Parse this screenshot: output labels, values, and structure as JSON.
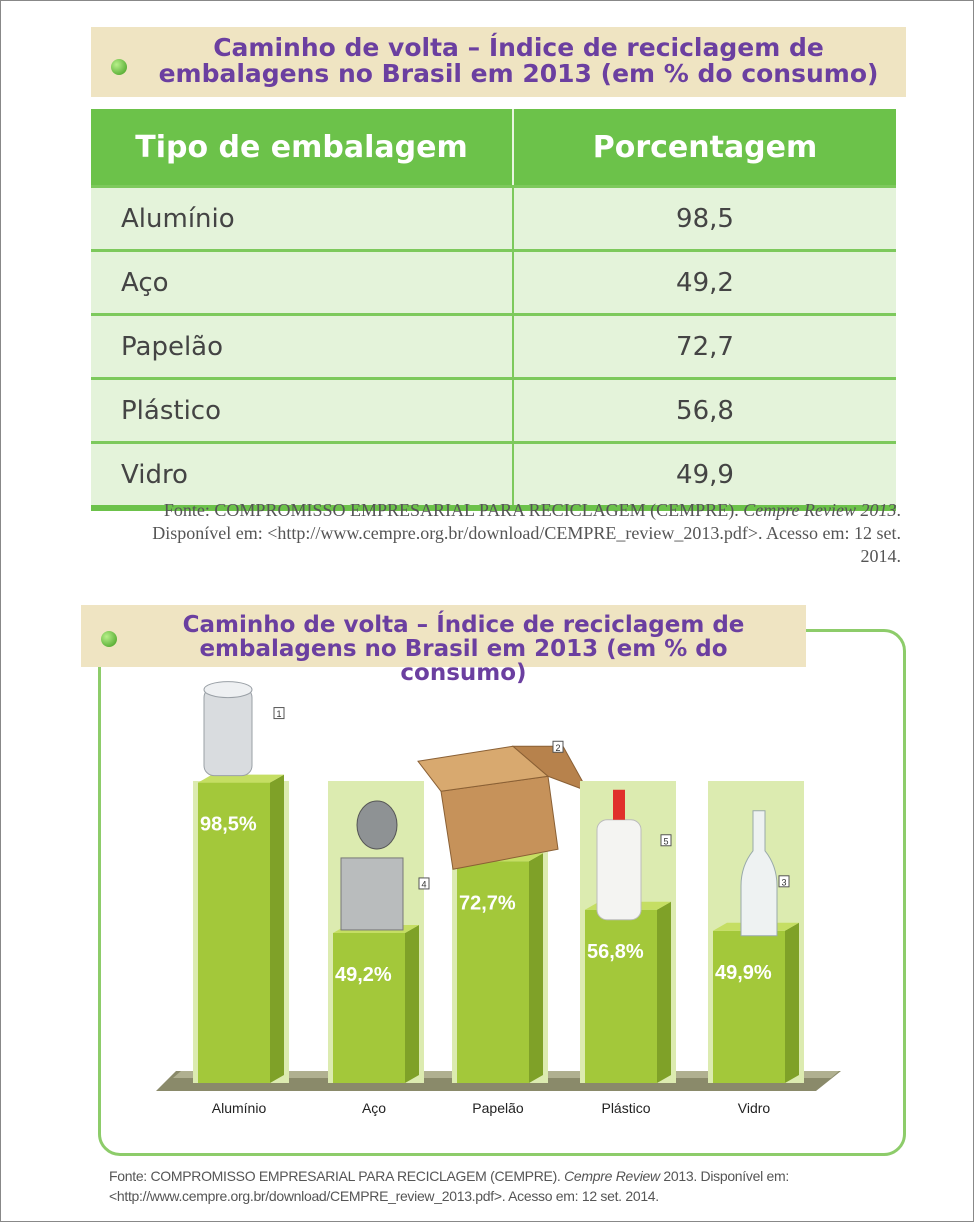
{
  "table_section": {
    "title": "Caminho de volta – Índice de reciclagem de embalagens no Brasil em 2013 (em % do consumo)",
    "header": [
      "Tipo de embalagem",
      "Porcentagem"
    ],
    "rows": [
      [
        "Alumínio",
        "98,5"
      ],
      [
        "Aço",
        "49,2"
      ],
      [
        "Papelão",
        "72,7"
      ],
      [
        "Plástico",
        "56,8"
      ],
      [
        "Vidro",
        "49,9"
      ]
    ],
    "source": [
      "Fonte: COMPROMISSO EMPRESARIAL PARA RECICLAGEM (CEMPRE). ",
      "Cempre Review 2013",
      ". Disponível em: <http://www.cempre.org.br/download/CEMPRE_review_2013.pdf>. Acesso em: 12 set. 2014."
    ]
  },
  "chart_data": {
    "type": "bar",
    "title": "Caminho de volta – Índice de reciclagem de embalagens no Brasil em 2013 (em % do consumo)",
    "categories": [
      "Alumínio",
      "Aço",
      "Papelão",
      "Plástico",
      "Vidro"
    ],
    "values": [
      98.5,
      49.2,
      72.7,
      56.8,
      49.9
    ],
    "value_labels": [
      "98,5%",
      "49,2%",
      "72,7%",
      "56,8%",
      "49,9%"
    ],
    "image_labels": [
      "1",
      "4",
      "2",
      "5",
      "3"
    ],
    "color": "#a3c83a",
    "source": [
      "Fonte: COMPROMISSO EMPRESARIAL PARA RECICLAGEM (CEMPRE). ",
      "Cempre Review",
      " 2013. Disponível em: <http://www.cempre.org.br/download/CEMPRE_review_2013.pdf>. Acesso em: 12 set. 2014."
    ]
  }
}
